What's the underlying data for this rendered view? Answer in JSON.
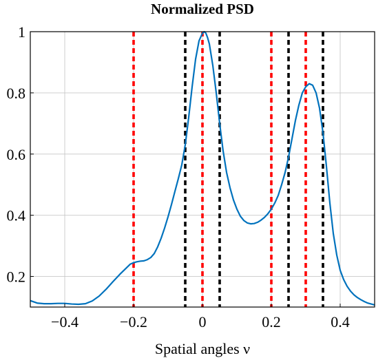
{
  "chart_data": {
    "type": "line",
    "title": "Normalized PSD",
    "xlabel": "Spatial angles ν",
    "ylabel": "",
    "xlim": [
      -0.5,
      0.5
    ],
    "ylim": [
      0.1,
      1.0
    ],
    "grid": true,
    "xticks": [
      -0.4,
      -0.2,
      0,
      0.2,
      0.4
    ],
    "xtick_labels": [
      "−0.4",
      "−0.2",
      "0",
      "0.2",
      "0.4"
    ],
    "yticks": [
      0.2,
      0.4,
      0.6,
      0.8,
      1.0
    ],
    "ytick_labels": [
      "0.2",
      "0.4",
      "0.6",
      "0.8",
      "1"
    ],
    "series": [
      {
        "color": "#0072bd",
        "x": [
          -0.5,
          -0.48,
          -0.46,
          -0.44,
          -0.42,
          -0.4,
          -0.38,
          -0.36,
          -0.34,
          -0.32,
          -0.3,
          -0.28,
          -0.26,
          -0.24,
          -0.22,
          -0.21,
          -0.2,
          -0.19,
          -0.18,
          -0.17,
          -0.16,
          -0.15,
          -0.14,
          -0.13,
          -0.12,
          -0.11,
          -0.1,
          -0.09,
          -0.08,
          -0.07,
          -0.06,
          -0.05,
          -0.04,
          -0.03,
          -0.02,
          -0.01,
          0.0,
          0.005,
          0.01,
          0.015,
          0.02,
          0.03,
          0.04,
          0.05,
          0.06,
          0.07,
          0.08,
          0.09,
          0.1,
          0.11,
          0.12,
          0.13,
          0.14,
          0.15,
          0.16,
          0.17,
          0.18,
          0.19,
          0.2,
          0.21,
          0.22,
          0.23,
          0.24,
          0.25,
          0.26,
          0.27,
          0.28,
          0.29,
          0.3,
          0.31,
          0.32,
          0.33,
          0.34,
          0.35,
          0.36,
          0.37,
          0.38,
          0.39,
          0.4,
          0.41,
          0.42,
          0.43,
          0.44,
          0.45,
          0.46,
          0.47,
          0.48,
          0.49,
          0.5
        ],
        "y": [
          0.121,
          0.113,
          0.111,
          0.111,
          0.112,
          0.112,
          0.11,
          0.109,
          0.111,
          0.12,
          0.136,
          0.158,
          0.183,
          0.207,
          0.229,
          0.24,
          0.245,
          0.248,
          0.25,
          0.251,
          0.255,
          0.262,
          0.275,
          0.297,
          0.325,
          0.358,
          0.395,
          0.435,
          0.478,
          0.52,
          0.565,
          0.63,
          0.72,
          0.82,
          0.91,
          0.97,
          0.995,
          1.0,
          0.995,
          0.98,
          0.96,
          0.89,
          0.8,
          0.7,
          0.61,
          0.54,
          0.49,
          0.45,
          0.42,
          0.397,
          0.383,
          0.375,
          0.372,
          0.373,
          0.377,
          0.384,
          0.393,
          0.405,
          0.42,
          0.44,
          0.465,
          0.5,
          0.54,
          0.59,
          0.65,
          0.71,
          0.76,
          0.8,
          0.82,
          0.83,
          0.825,
          0.8,
          0.75,
          0.67,
          0.56,
          0.44,
          0.34,
          0.27,
          0.22,
          0.19,
          0.168,
          0.152,
          0.14,
          0.131,
          0.124,
          0.118,
          0.113,
          0.11,
          0.107
        ]
      }
    ],
    "vlines": [
      {
        "x": -0.2,
        "color": "#ff0000"
      },
      {
        "x": 0.0,
        "color": "#ff0000"
      },
      {
        "x": 0.2,
        "color": "#ff0000"
      },
      {
        "x": 0.3,
        "color": "#ff0000"
      },
      {
        "x": -0.05,
        "color": "#000000"
      },
      {
        "x": 0.05,
        "color": "#000000"
      },
      {
        "x": 0.25,
        "color": "#000000"
      },
      {
        "x": 0.35,
        "color": "#000000"
      }
    ]
  }
}
